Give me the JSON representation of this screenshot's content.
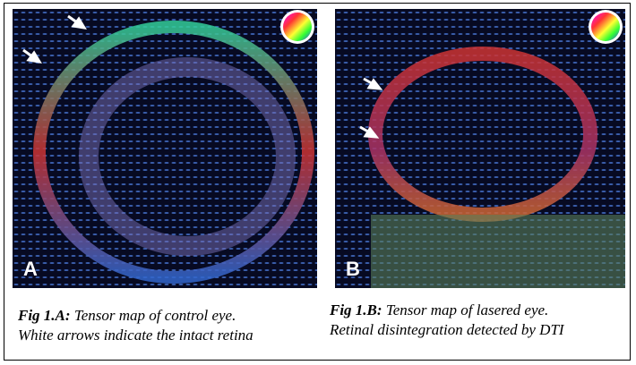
{
  "panels": [
    {
      "label": "A",
      "caption_title": "Fig 1.A:",
      "caption_lines": [
        "Tensor map of control eye.",
        "White arrows indicate the intact retina"
      ]
    },
    {
      "label": "B",
      "caption_title": "Fig 1.B:",
      "caption_lines": [
        "Tensor map of lasered eye.",
        "Retinal disintegration detected by DTI"
      ]
    }
  ]
}
